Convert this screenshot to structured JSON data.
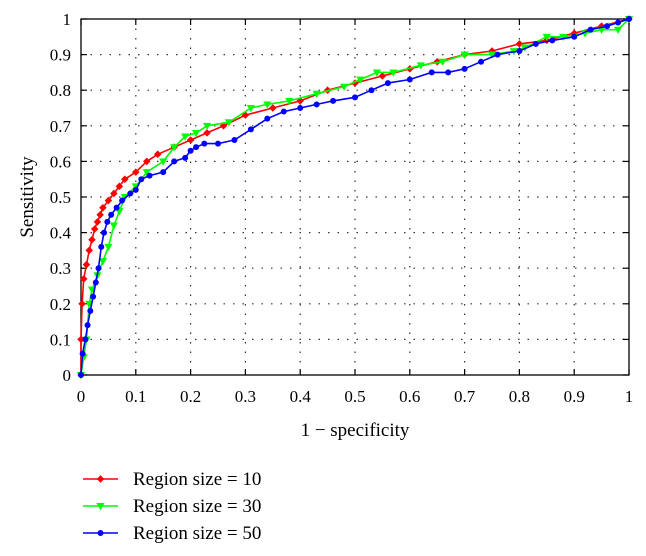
{
  "chart_data": {
    "type": "line",
    "xlabel": "1 − specificity",
    "ylabel": "Sensitivity",
    "xlim": [
      0,
      1
    ],
    "ylim": [
      0,
      1
    ],
    "grid": true,
    "legend_position": "bottom-left, below plot",
    "x_ticks": [
      "0",
      "0.1",
      "0.2",
      "0.3",
      "0.4",
      "0.5",
      "0.6",
      "0.7",
      "0.8",
      "0.9",
      "1"
    ],
    "y_ticks": [
      "0",
      "0.1",
      "0.2",
      "0.3",
      "0.4",
      "0.5",
      "0.6",
      "0.7",
      "0.8",
      "0.9",
      "1"
    ],
    "series": [
      {
        "name": "Region size = 10",
        "color": "#ff0000",
        "marker": "diamond",
        "points": [
          [
            0,
            0
          ],
          [
            0,
            0.1
          ],
          [
            0.002,
            0.2
          ],
          [
            0.005,
            0.27
          ],
          [
            0.01,
            0.31
          ],
          [
            0.015,
            0.35
          ],
          [
            0.02,
            0.38
          ],
          [
            0.025,
            0.41
          ],
          [
            0.03,
            0.43
          ],
          [
            0.035,
            0.45
          ],
          [
            0.04,
            0.47
          ],
          [
            0.05,
            0.49
          ],
          [
            0.06,
            0.51
          ],
          [
            0.07,
            0.53
          ],
          [
            0.08,
            0.55
          ],
          [
            0.1,
            0.57
          ],
          [
            0.12,
            0.6
          ],
          [
            0.14,
            0.62
          ],
          [
            0.17,
            0.64
          ],
          [
            0.2,
            0.66
          ],
          [
            0.23,
            0.68
          ],
          [
            0.26,
            0.7
          ],
          [
            0.3,
            0.73
          ],
          [
            0.35,
            0.75
          ],
          [
            0.4,
            0.77
          ],
          [
            0.45,
            0.8
          ],
          [
            0.5,
            0.82
          ],
          [
            0.55,
            0.84
          ],
          [
            0.6,
            0.86
          ],
          [
            0.65,
            0.88
          ],
          [
            0.7,
            0.9
          ],
          [
            0.75,
            0.91
          ],
          [
            0.8,
            0.93
          ],
          [
            0.85,
            0.94
          ],
          [
            0.9,
            0.96
          ],
          [
            0.95,
            0.98
          ],
          [
            1,
            1
          ]
        ]
      },
      {
        "name": "Region size = 30",
        "color": "#00ff00",
        "marker": "triangle-down",
        "points": [
          [
            0,
            0
          ],
          [
            0.005,
            0.05
          ],
          [
            0.01,
            0.1
          ],
          [
            0.015,
            0.2
          ],
          [
            0.02,
            0.24
          ],
          [
            0.03,
            0.28
          ],
          [
            0.04,
            0.32
          ],
          [
            0.05,
            0.36
          ],
          [
            0.06,
            0.42
          ],
          [
            0.07,
            0.46
          ],
          [
            0.08,
            0.5
          ],
          [
            0.1,
            0.53
          ],
          [
            0.12,
            0.57
          ],
          [
            0.15,
            0.6
          ],
          [
            0.17,
            0.64
          ],
          [
            0.19,
            0.67
          ],
          [
            0.21,
            0.68
          ],
          [
            0.23,
            0.7
          ],
          [
            0.27,
            0.71
          ],
          [
            0.31,
            0.75
          ],
          [
            0.34,
            0.76
          ],
          [
            0.38,
            0.77
          ],
          [
            0.43,
            0.79
          ],
          [
            0.48,
            0.81
          ],
          [
            0.51,
            0.83
          ],
          [
            0.54,
            0.85
          ],
          [
            0.57,
            0.85
          ],
          [
            0.62,
            0.87
          ],
          [
            0.66,
            0.88
          ],
          [
            0.7,
            0.9
          ],
          [
            0.75,
            0.9
          ],
          [
            0.79,
            0.91
          ],
          [
            0.81,
            0.92
          ],
          [
            0.85,
            0.95
          ],
          [
            0.88,
            0.95
          ],
          [
            0.92,
            0.96
          ],
          [
            0.95,
            0.97
          ],
          [
            0.98,
            0.97
          ],
          [
            1,
            1
          ]
        ]
      },
      {
        "name": "Region size = 50",
        "color": "#0000ff",
        "marker": "circle",
        "points": [
          [
            0,
            0
          ],
          [
            0.003,
            0.06
          ],
          [
            0.008,
            0.1
          ],
          [
            0.012,
            0.14
          ],
          [
            0.017,
            0.18
          ],
          [
            0.022,
            0.22
          ],
          [
            0.027,
            0.26
          ],
          [
            0.032,
            0.3
          ],
          [
            0.037,
            0.36
          ],
          [
            0.042,
            0.4
          ],
          [
            0.048,
            0.43
          ],
          [
            0.055,
            0.45
          ],
          [
            0.065,
            0.47
          ],
          [
            0.075,
            0.49
          ],
          [
            0.09,
            0.51
          ],
          [
            0.1,
            0.52
          ],
          [
            0.11,
            0.55
          ],
          [
            0.125,
            0.56
          ],
          [
            0.15,
            0.57
          ],
          [
            0.17,
            0.6
          ],
          [
            0.19,
            0.61
          ],
          [
            0.2,
            0.63
          ],
          [
            0.21,
            0.64
          ],
          [
            0.225,
            0.65
          ],
          [
            0.25,
            0.65
          ],
          [
            0.28,
            0.66
          ],
          [
            0.31,
            0.69
          ],
          [
            0.34,
            0.72
          ],
          [
            0.37,
            0.74
          ],
          [
            0.4,
            0.75
          ],
          [
            0.43,
            0.76
          ],
          [
            0.46,
            0.77
          ],
          [
            0.5,
            0.78
          ],
          [
            0.53,
            0.8
          ],
          [
            0.56,
            0.82
          ],
          [
            0.6,
            0.83
          ],
          [
            0.64,
            0.85
          ],
          [
            0.67,
            0.85
          ],
          [
            0.7,
            0.86
          ],
          [
            0.73,
            0.88
          ],
          [
            0.76,
            0.9
          ],
          [
            0.8,
            0.91
          ],
          [
            0.83,
            0.93
          ],
          [
            0.86,
            0.94
          ],
          [
            0.9,
            0.95
          ],
          [
            0.93,
            0.97
          ],
          [
            0.96,
            0.98
          ],
          [
            0.98,
            0.99
          ],
          [
            1,
            1
          ]
        ]
      }
    ]
  }
}
